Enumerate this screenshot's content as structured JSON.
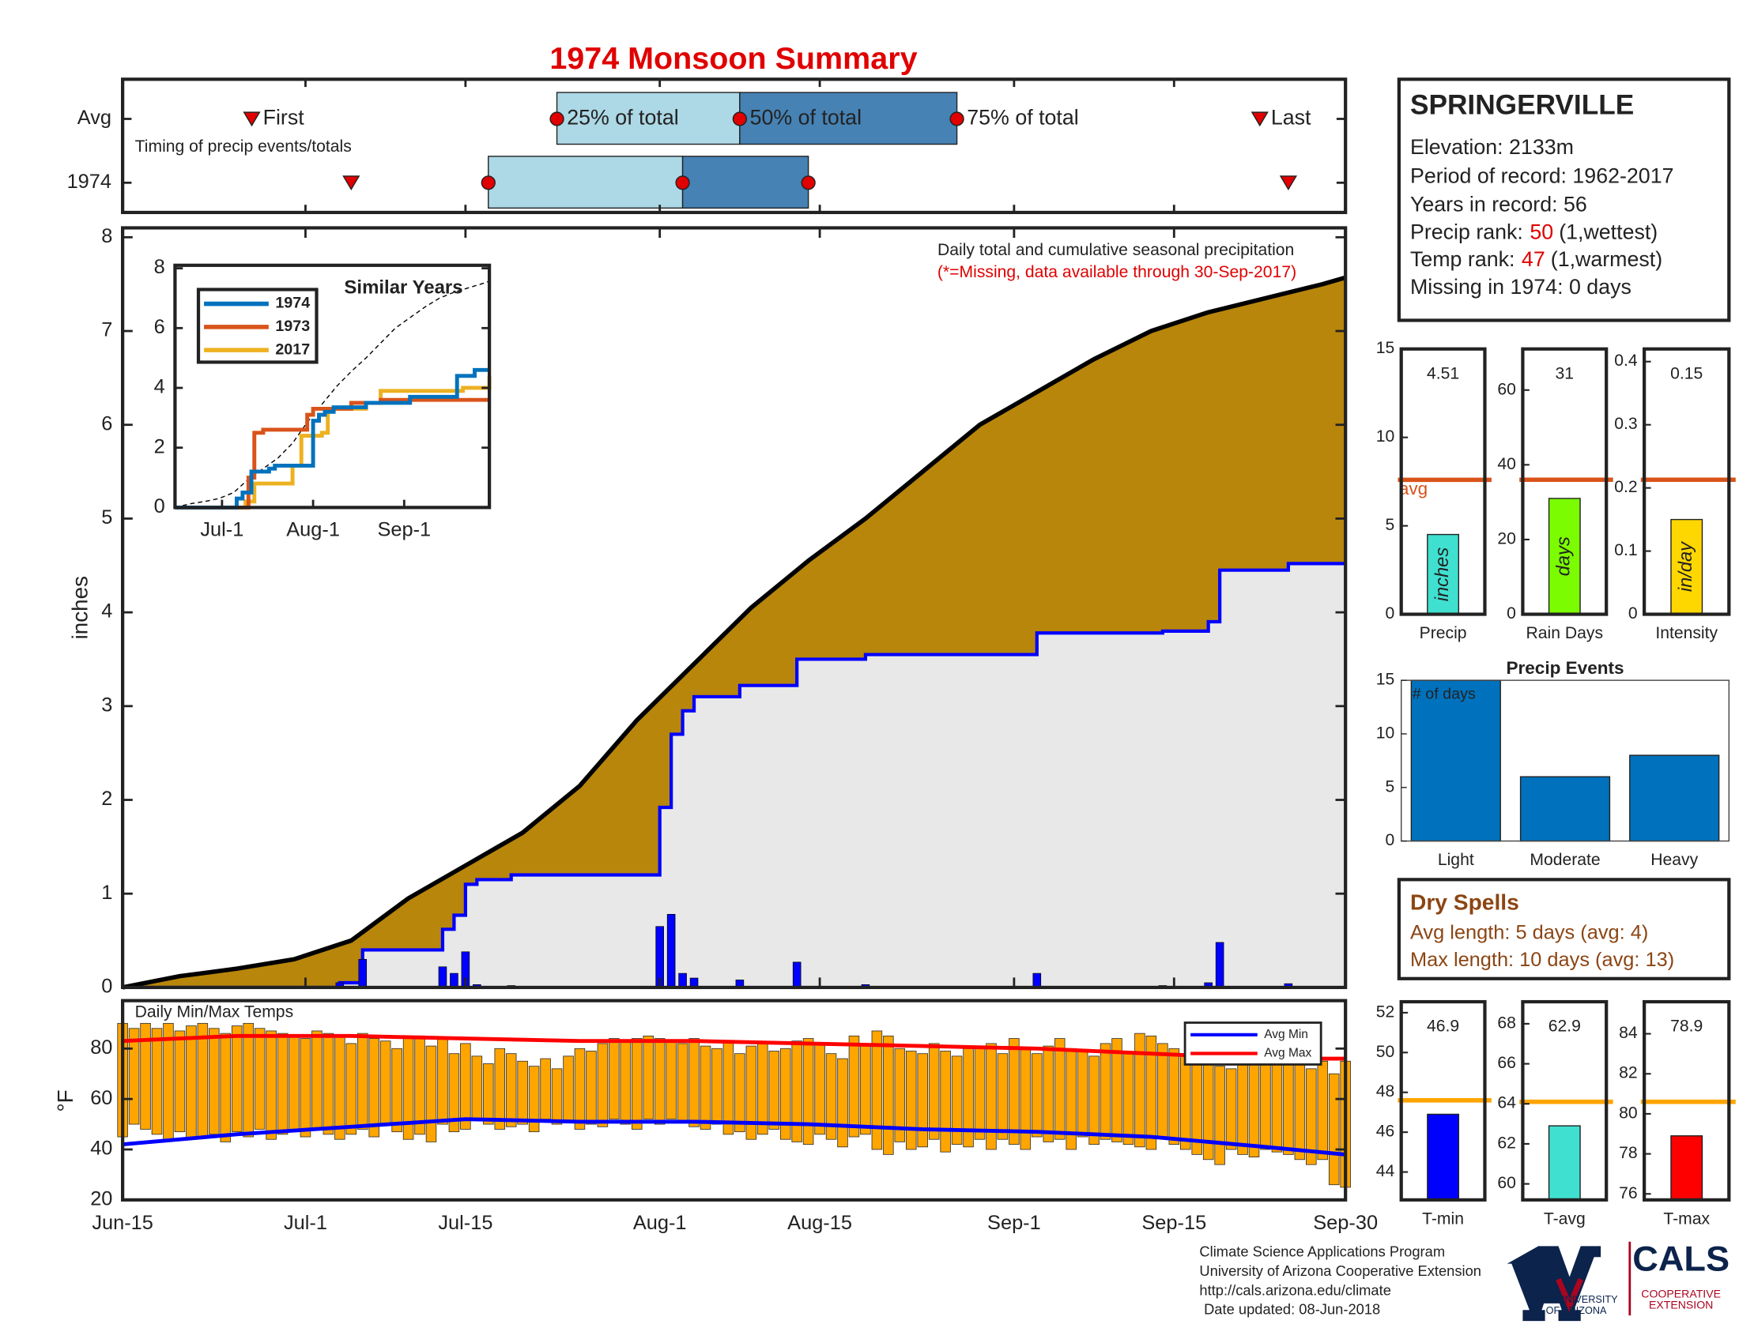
{
  "title": "1974 Monsoon Summary",
  "station": {
    "name": "SPRINGERVILLE",
    "lines": [
      "Elevation: 2133m",
      "Period of record: 1962-2017",
      "Years in record: 56"
    ],
    "precip_rank": {
      "label": "Precip rank:",
      "value": 50,
      "note": "(1,wettest)"
    },
    "temp_rank": {
      "label": "Temp rank:",
      "value": 47,
      "note": "(1,warmest)"
    },
    "missing": "Missing in 1974: 0 days"
  },
  "dry_spells": {
    "title": "Dry Spells",
    "lines": [
      "Avg length: 5 days (avg: 4)",
      "Max length: 10 days (avg: 13)"
    ]
  },
  "footer": {
    "lines": [
      "Climate Science Applications Program",
      "University of Arizona Cooperative Extension",
      "http://cals.arizona.edu/climate",
      "Date updated: 08-Jun-2018"
    ],
    "university": [
      "THE UNIVERSITY",
      "OF ARIZONA"
    ],
    "cals": "CALS",
    "extension": [
      "COOPERATIVE",
      "EXTENSION"
    ]
  },
  "chart_data": [
    {
      "type": "timing",
      "rows": [
        "Avg",
        "1974"
      ],
      "note": "Timing of precip events/totals",
      "xlim": [
        0,
        107
      ],
      "first": {
        "label": "First",
        "values": [
          11.3,
          20
        ]
      },
      "last": {
        "label": "Last",
        "values": [
          99.5,
          102
        ]
      },
      "quartiles": [
        {
          "label": "25% of total",
          "values": [
            38,
            32
          ]
        },
        {
          "label": "50% of total",
          "values": [
            54,
            49
          ]
        },
        {
          "label": "75% of total",
          "values": [
            73,
            60
          ]
        }
      ],
      "colors": [
        "#add8e6",
        "#4682b4"
      ],
      "marker_color": "#e00000"
    },
    {
      "type": "cumulative",
      "title": "Daily total and cumulative seasonal precipitation",
      "subtitle": "(*=Missing, data available through 30-Sep-2017)",
      "ylabel": "inches",
      "xlim": [
        0,
        107
      ],
      "xticks": [
        {
          "value": 0,
          "label": "Jun-15"
        },
        {
          "value": 16,
          "label": "Jul-1"
        },
        {
          "value": 30,
          "label": "Jul-15"
        },
        {
          "value": 47,
          "label": "Aug-1"
        },
        {
          "value": 61,
          "label": "Aug-15"
        },
        {
          "value": 78,
          "label": "Sep-1"
        },
        {
          "value": 92,
          "label": "Sep-15"
        },
        {
          "value": 107,
          "label": "Sep-30"
        }
      ],
      "ylim": [
        0,
        8.1
      ],
      "yticks": [
        0,
        1,
        2,
        3,
        4,
        5,
        6,
        7,
        8
      ],
      "average": {
        "x": [
          0,
          5,
          10,
          15,
          20,
          25,
          30,
          35,
          40,
          45,
          50,
          55,
          60,
          65,
          70,
          75,
          80,
          85,
          90,
          95,
          100,
          105,
          107
        ],
        "values": [
          0,
          0.12,
          0.2,
          0.3,
          0.5,
          0.95,
          1.3,
          1.65,
          2.15,
          2.85,
          3.45,
          4.05,
          4.55,
          5.0,
          5.5,
          6.0,
          6.35,
          6.7,
          7.0,
          7.2,
          7.35,
          7.5,
          7.57
        ],
        "color": "#b8860b"
      },
      "cumulative_1974": {
        "x": [
          0,
          19,
          21,
          28,
          29,
          30,
          31,
          34,
          47,
          48,
          49,
          50,
          54,
          59,
          65,
          80,
          91,
          95,
          96,
          102,
          107
        ],
        "values": [
          0,
          0.05,
          0.4,
          0.62,
          0.77,
          1.1,
          1.15,
          1.2,
          1.92,
          2.7,
          2.95,
          3.1,
          3.22,
          3.5,
          3.55,
          3.78,
          3.8,
          3.9,
          4.45,
          4.52,
          4.52
        ],
        "color": "#0000ff",
        "fill": "#e8e8e8"
      },
      "daily_1974": {
        "x": [
          19,
          21,
          28,
          29,
          30,
          31,
          34,
          47,
          48,
          49,
          50,
          54,
          59,
          65,
          80,
          91,
          95,
          96,
          102
        ],
        "values": [
          0.05,
          0.3,
          0.22,
          0.15,
          0.38,
          0.03,
          0.02,
          0.65,
          0.78,
          0.15,
          0.1,
          0.08,
          0.27,
          0.03,
          0.15,
          0.02,
          0.05,
          0.48,
          0.04
        ],
        "color": "#0000ff"
      }
    },
    {
      "type": "line",
      "title": "Similar Years",
      "xlim": [
        0,
        107
      ],
      "xticks": [
        {
          "value": 16,
          "label": "Jul-1"
        },
        {
          "value": 47,
          "label": "Aug-1"
        },
        {
          "value": 78,
          "label": "Sep-1"
        }
      ],
      "ylim": [
        0,
        8.1
      ],
      "yticks": [
        0,
        2,
        4,
        6,
        8
      ],
      "series": [
        {
          "name": "1974",
          "color": "#0072bd",
          "x": [
            0,
            21,
            23,
            26,
            32,
            34,
            47,
            49,
            51,
            54,
            65,
            80,
            96,
            102,
            107
          ],
          "values": [
            0,
            0.3,
            0.5,
            1.2,
            1.3,
            1.4,
            2.9,
            3.1,
            3.2,
            3.35,
            3.5,
            3.7,
            4.4,
            4.6,
            4.6
          ]
        },
        {
          "name": "1973",
          "color": "#d95319",
          "x": [
            0,
            25,
            27,
            30,
            42,
            45,
            47,
            60,
            70,
            107
          ],
          "values": [
            0,
            1.0,
            2.5,
            2.6,
            2.6,
            3.1,
            3.3,
            3.5,
            3.6,
            3.6
          ]
        },
        {
          "name": "2017",
          "color": "#edb120",
          "x": [
            0,
            24,
            27,
            38,
            40,
            43,
            50,
            52,
            65,
            70,
            90,
            98,
            107
          ],
          "values": [
            0,
            0.2,
            0.8,
            0.8,
            1.4,
            2.4,
            2.5,
            3.3,
            3.5,
            3.9,
            3.9,
            4.0,
            4.4
          ]
        }
      ]
    },
    {
      "type": "range-bar",
      "title": "Daily Min/Max Temps",
      "ylabel": "°F",
      "xlim": [
        0,
        107
      ],
      "ylim": [
        20,
        99
      ],
      "yticks": [
        20,
        40,
        60,
        80
      ],
      "color": "#ffa500",
      "max": [
        90,
        88,
        90,
        88,
        90,
        87,
        89,
        90,
        88,
        86,
        89,
        90,
        88,
        87,
        86,
        85,
        84,
        87,
        86,
        85,
        82,
        86,
        84,
        83,
        80,
        84,
        85,
        81,
        84,
        78,
        82,
        77,
        74,
        80,
        78,
        75,
        73,
        76,
        72,
        77,
        80,
        79,
        82,
        84,
        83,
        84,
        85,
        84,
        83,
        82,
        84,
        81,
        80,
        83,
        78,
        81,
        82,
        79,
        80,
        83,
        84,
        82,
        78,
        76,
        85,
        82,
        87,
        85,
        80,
        79,
        78,
        82,
        79,
        77,
        80,
        81,
        82,
        78,
        84,
        80,
        78,
        81,
        84,
        80,
        79,
        77,
        82,
        84,
        78,
        86,
        85,
        82,
        80,
        78,
        76,
        74,
        73,
        72,
        78,
        74,
        77,
        79,
        78,
        74,
        72,
        75,
        70,
        75
      ],
      "min": [
        45,
        50,
        48,
        46,
        44,
        47,
        44,
        45,
        46,
        43,
        47,
        45,
        48,
        44,
        46,
        47,
        45,
        48,
        46,
        44,
        46,
        48,
        45,
        50,
        47,
        44,
        46,
        43,
        50,
        47,
        48,
        52,
        50,
        48,
        49,
        50,
        47,
        52,
        50,
        51,
        48,
        50,
        49,
        52,
        50,
        48,
        52,
        50,
        52,
        51,
        49,
        48,
        50,
        46,
        47,
        44,
        46,
        48,
        44,
        43,
        42,
        46,
        44,
        41,
        45,
        46,
        40,
        38,
        43,
        40,
        41,
        44,
        39,
        42,
        41,
        44,
        40,
        44,
        42,
        40,
        45,
        43,
        44,
        40,
        45,
        42,
        44,
        43,
        42,
        41,
        40,
        45,
        42,
        40,
        38,
        36,
        34,
        40,
        38,
        37,
        40,
        39,
        38,
        36,
        34,
        36,
        26,
        25
      ],
      "series": [
        {
          "name": "Avg Min",
          "color": "#0000ff",
          "x": [
            0,
            10,
            20,
            30,
            40,
            50,
            60,
            70,
            80,
            90,
            100,
            107
          ],
          "values": [
            42,
            46,
            49,
            52,
            51,
            51,
            50,
            48,
            47,
            45,
            41,
            38
          ]
        },
        {
          "name": "Avg Max",
          "color": "#ff0000",
          "x": [
            0,
            10,
            20,
            30,
            40,
            50,
            60,
            70,
            80,
            90,
            100,
            107
          ],
          "values": [
            83,
            85,
            85,
            84,
            83,
            83,
            82,
            81,
            80,
            78,
            76,
            76
          ]
        }
      ]
    },
    {
      "type": "single-bar",
      "label": "Precip",
      "value": 4.51,
      "average": 7.6,
      "average_label": "avg",
      "unit": "inches",
      "color": "#40e0d0",
      "avg_color": "#d95319",
      "ylim": [
        0,
        15
      ],
      "yticks": [
        0,
        5,
        10,
        15
      ]
    },
    {
      "type": "single-bar",
      "label": "Rain Days",
      "value": 31,
      "average": 36,
      "unit": "days",
      "color": "#7cfc00",
      "avg_color": "#d95319",
      "ylim": [
        0,
        71
      ],
      "yticks": [
        0,
        20,
        40,
        60
      ]
    },
    {
      "type": "single-bar",
      "label": "Intensity",
      "value": 0.15,
      "average": 0.213,
      "unit": "in/day",
      "color": "#ffd700",
      "avg_color": "#d95319",
      "ylim": [
        0,
        0.42
      ],
      "yticks": [
        0,
        0.1,
        0.2,
        0.3,
        0.4
      ]
    },
    {
      "type": "bar",
      "title": "Precip Events",
      "ylabel": "# of days",
      "categories": [
        "Light",
        "Moderate",
        "Heavy"
      ],
      "values": [
        15,
        6,
        8
      ],
      "color": "#0072bd",
      "ylim": [
        0,
        15
      ],
      "yticks": [
        0,
        5,
        10,
        15
      ]
    },
    {
      "type": "single-bar",
      "label": "T-min",
      "value": 46.9,
      "average": 47.6,
      "color": "#0000ff",
      "avg_color": "#ffa500",
      "ylim": [
        42.6,
        52.55
      ],
      "yticks": [
        44,
        46,
        48,
        50,
        52
      ]
    },
    {
      "type": "single-bar",
      "label": "T-avg",
      "value": 62.9,
      "average": 64.1,
      "color": "#40e0d0",
      "avg_color": "#ffa500",
      "ylim": [
        59.2,
        69.1
      ],
      "yticks": [
        60,
        62,
        64,
        66,
        68
      ]
    },
    {
      "type": "single-bar",
      "label": "T-max",
      "value": 78.9,
      "average": 80.6,
      "color": "#ff0000",
      "avg_color": "#ffa500",
      "ylim": [
        75.7,
        85.6
      ],
      "yticks": [
        76,
        78,
        80,
        82,
        84
      ]
    }
  ]
}
